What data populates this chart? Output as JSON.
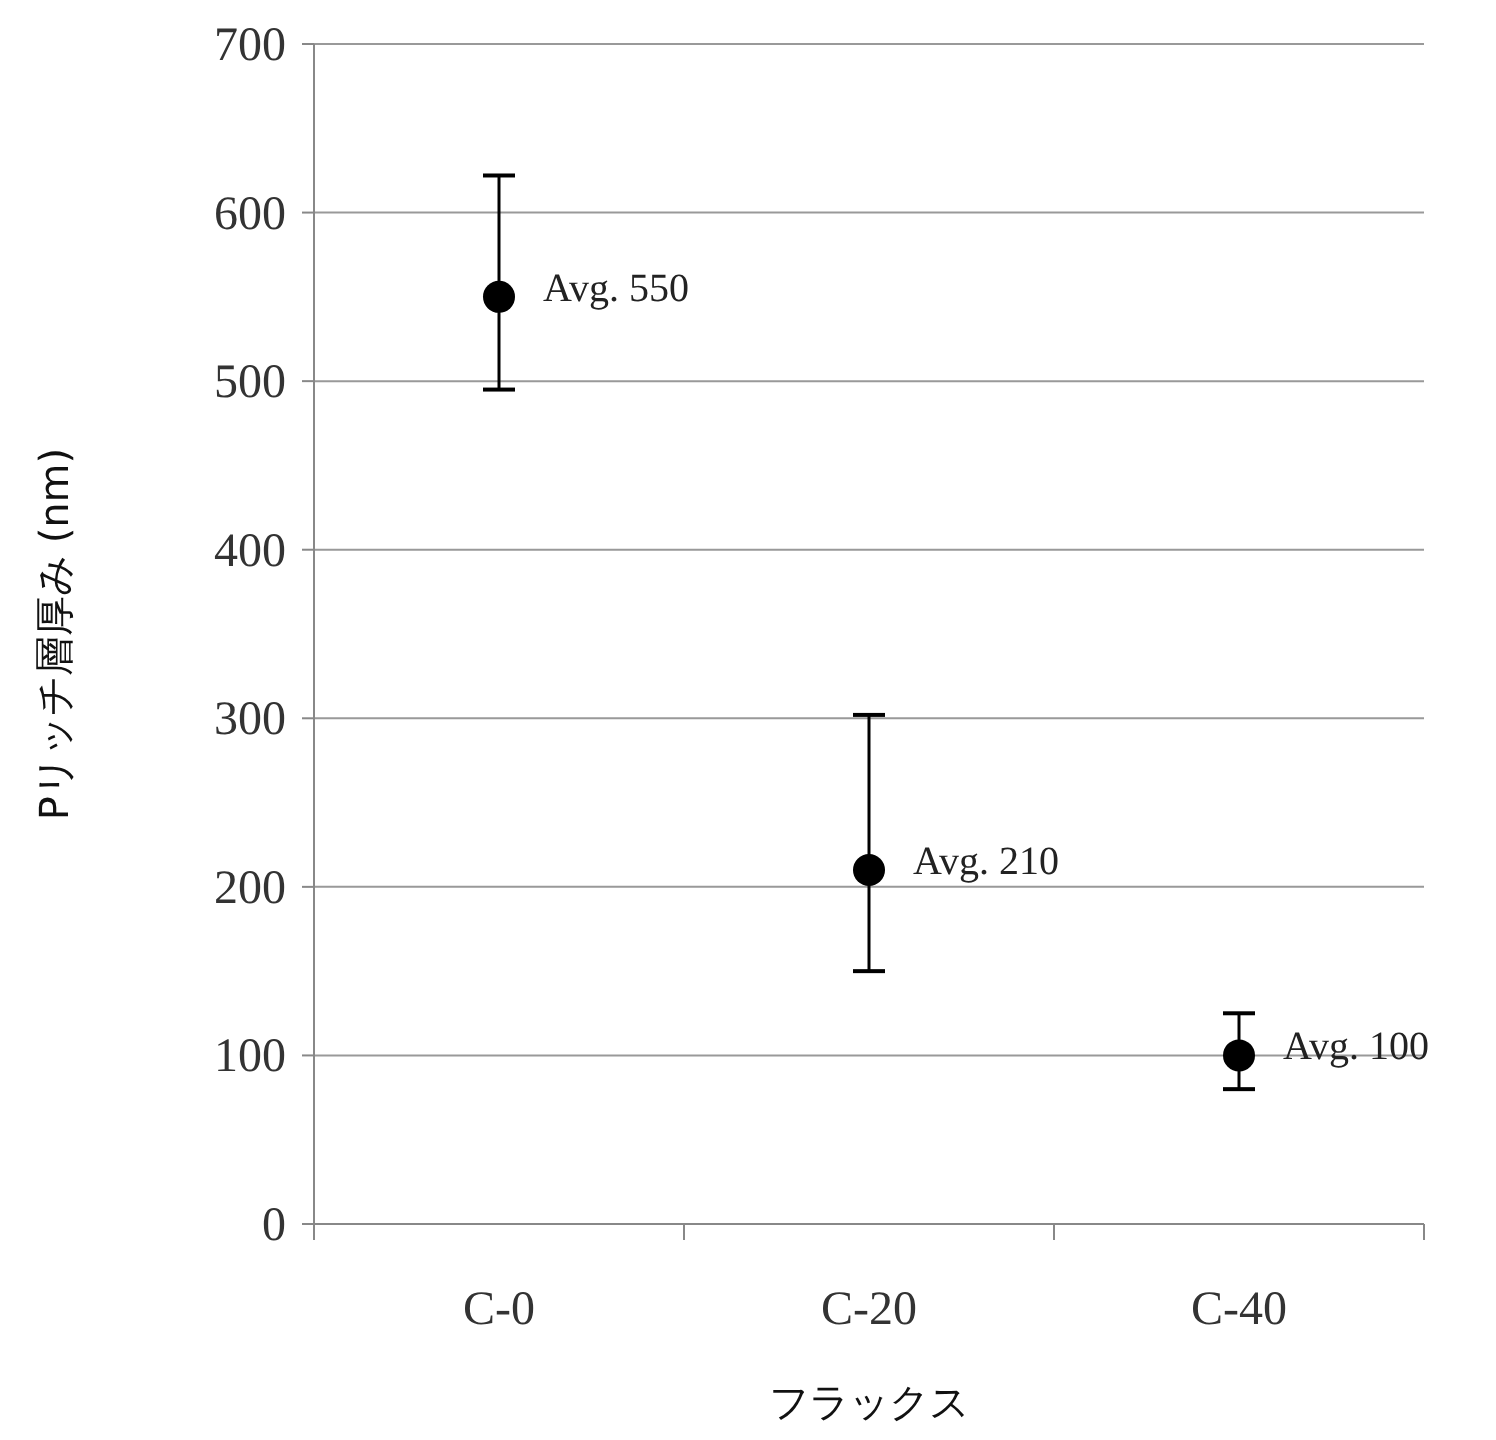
{
  "chart_data": {
    "type": "scatter",
    "xlabel": "フラックス",
    "ylabel": "Pリッチ層厚み (nm)",
    "categories": [
      "C-0",
      "C-20",
      "C-40"
    ],
    "series": [
      {
        "color": "#000000",
        "values": [
          550,
          210,
          100
        ],
        "errors": [
          [
            495,
            622
          ],
          [
            150,
            302
          ],
          [
            80,
            125
          ]
        ]
      }
    ],
    "ylim": [
      0,
      700
    ],
    "yticks": [
      0,
      100,
      200,
      300,
      400,
      500,
      600,
      700
    ],
    "grid": "y",
    "marker": "circle",
    "annotations": [
      {
        "text": "Avg. 550",
        "x": "C-0",
        "y": 550
      },
      {
        "text": "Avg. 210",
        "x": "C-20",
        "y": 210
      },
      {
        "text": "Avg. 100",
        "x": "C-40",
        "y": 100
      }
    ]
  }
}
